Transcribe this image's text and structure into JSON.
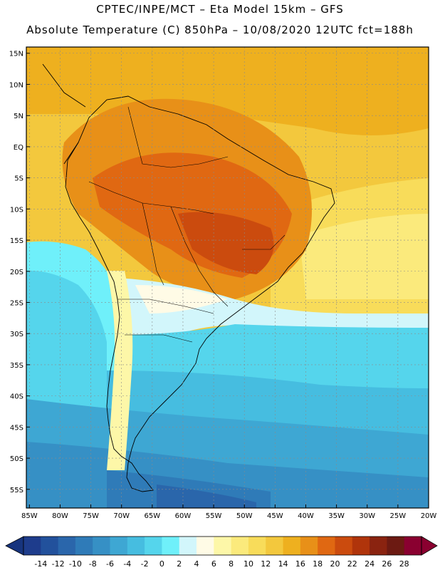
{
  "header": {
    "line1": "CPTEC/INPE/MCT –  Eta Model 15km – GFS",
    "line2": "Absolute Temperature (C) 850hPa – 10/08/2020 12UTC fct=188h"
  },
  "map": {
    "lat_ticks": [
      "15N",
      "10N",
      "5N",
      "EQ",
      "5S",
      "10S",
      "15S",
      "20S",
      "25S",
      "30S",
      "35S",
      "40S",
      "45S",
      "50S",
      "55S"
    ],
    "lon_ticks": [
      "85W",
      "80W",
      "75W",
      "70W",
      "65W",
      "60W",
      "55W",
      "50W",
      "45W",
      "40W",
      "35W",
      "30W",
      "25W",
      "20W"
    ],
    "lat_range": [
      16,
      -58
    ],
    "lon_range": [
      -85.5,
      -20
    ]
  },
  "legend": {
    "levels": [
      "-14",
      "-12",
      "-10",
      "-8",
      "-6",
      "-4",
      "-2",
      "0",
      "2",
      "4",
      "6",
      "8",
      "10",
      "12",
      "14",
      "16",
      "18",
      "20",
      "22",
      "24",
      "26",
      "28"
    ],
    "colors": [
      "#1e3c8c",
      "#22519c",
      "#2a66ab",
      "#2f7bb8",
      "#3690c5",
      "#3ea7d3",
      "#46bde0",
      "#55d5ec",
      "#6ff0fa",
      "#d2f6fb",
      "#fffbe6",
      "#fdf7a8",
      "#fbea7c",
      "#f8dc5a",
      "#f3c83d",
      "#eeb01f",
      "#e89018",
      "#e06812",
      "#cb4b0e",
      "#b0340b",
      "#8a2310",
      "#6c1a12",
      "#8a0030"
    ],
    "low_color": "#17347e",
    "high_color": "#8a0030"
  }
}
